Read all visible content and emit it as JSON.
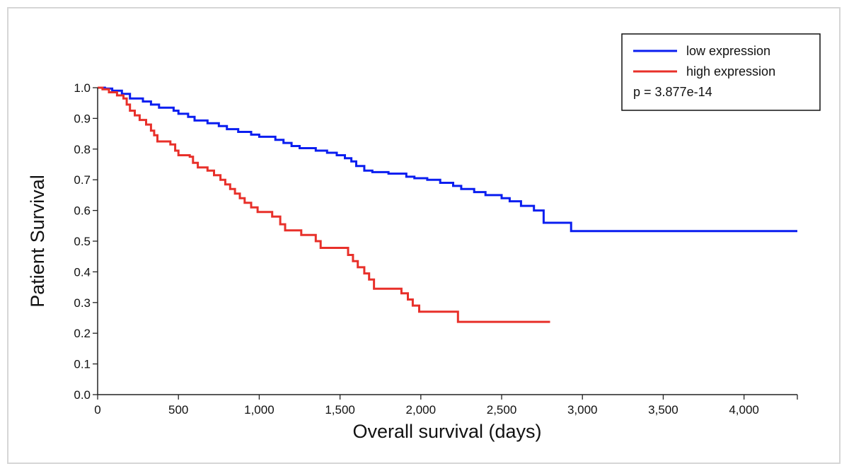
{
  "chart_data": {
    "type": "line",
    "subtype": "kaplan-meier-step",
    "xlabel": "Overall survival (days)",
    "ylabel": "Patient Survival",
    "xlim": [
      0,
      4330
    ],
    "ylim": [
      0,
      1.0
    ],
    "x_ticks": [
      0,
      500,
      1000,
      1500,
      2000,
      2500,
      3000,
      3500,
      4000
    ],
    "x_tick_labels": [
      "0",
      "500",
      "1,000",
      "1,500",
      "2,000",
      "2,500",
      "3,000",
      "3,500",
      "4,000"
    ],
    "y_ticks": [
      0,
      0.1,
      0.2,
      0.3,
      0.4,
      0.5,
      0.6,
      0.7,
      0.8,
      0.9,
      1.0
    ],
    "y_tick_labels": [
      "0.0",
      "0.1",
      "0.2",
      "0.3",
      "0.4",
      "0.5",
      "0.6",
      "0.7",
      "0.8",
      "0.9",
      "1.0"
    ],
    "grid": false,
    "legend": {
      "position": "top-right",
      "annotation": "p = 3.877e-14"
    },
    "series": [
      {
        "name": "low expression",
        "color": "#0a1ef0",
        "points": [
          [
            0,
            1.0
          ],
          [
            45,
            0.997
          ],
          [
            90,
            0.99
          ],
          [
            150,
            0.98
          ],
          [
            200,
            0.965
          ],
          [
            280,
            0.955
          ],
          [
            330,
            0.945
          ],
          [
            380,
            0.935
          ],
          [
            470,
            0.925
          ],
          [
            500,
            0.915
          ],
          [
            560,
            0.905
          ],
          [
            600,
            0.893
          ],
          [
            680,
            0.884
          ],
          [
            750,
            0.875
          ],
          [
            800,
            0.865
          ],
          [
            870,
            0.856
          ],
          [
            950,
            0.847
          ],
          [
            1000,
            0.84
          ],
          [
            1100,
            0.83
          ],
          [
            1150,
            0.82
          ],
          [
            1200,
            0.81
          ],
          [
            1250,
            0.803
          ],
          [
            1350,
            0.795
          ],
          [
            1420,
            0.788
          ],
          [
            1480,
            0.78
          ],
          [
            1530,
            0.77
          ],
          [
            1570,
            0.76
          ],
          [
            1600,
            0.745
          ],
          [
            1650,
            0.73
          ],
          [
            1700,
            0.725
          ],
          [
            1800,
            0.72
          ],
          [
            1910,
            0.71
          ],
          [
            1960,
            0.705
          ],
          [
            2040,
            0.7
          ],
          [
            2120,
            0.69
          ],
          [
            2200,
            0.68
          ],
          [
            2250,
            0.67
          ],
          [
            2330,
            0.66
          ],
          [
            2400,
            0.65
          ],
          [
            2500,
            0.64
          ],
          [
            2550,
            0.63
          ],
          [
            2620,
            0.615
          ],
          [
            2700,
            0.6
          ],
          [
            2760,
            0.56
          ],
          [
            2930,
            0.533
          ],
          [
            4330,
            0.533
          ]
        ]
      },
      {
        "name": "high expression",
        "color": "#e8302a",
        "points": [
          [
            0,
            1.0
          ],
          [
            30,
            0.995
          ],
          [
            70,
            0.985
          ],
          [
            120,
            0.975
          ],
          [
            160,
            0.965
          ],
          [
            180,
            0.945
          ],
          [
            200,
            0.925
          ],
          [
            230,
            0.91
          ],
          [
            260,
            0.895
          ],
          [
            300,
            0.88
          ],
          [
            330,
            0.86
          ],
          [
            350,
            0.845
          ],
          [
            370,
            0.825
          ],
          [
            450,
            0.815
          ],
          [
            480,
            0.795
          ],
          [
            500,
            0.78
          ],
          [
            570,
            0.775
          ],
          [
            590,
            0.755
          ],
          [
            620,
            0.74
          ],
          [
            680,
            0.73
          ],
          [
            720,
            0.715
          ],
          [
            760,
            0.7
          ],
          [
            790,
            0.685
          ],
          [
            820,
            0.67
          ],
          [
            850,
            0.655
          ],
          [
            880,
            0.64
          ],
          [
            910,
            0.625
          ],
          [
            950,
            0.61
          ],
          [
            990,
            0.595
          ],
          [
            1080,
            0.58
          ],
          [
            1130,
            0.555
          ],
          [
            1160,
            0.535
          ],
          [
            1260,
            0.52
          ],
          [
            1350,
            0.5
          ],
          [
            1380,
            0.478
          ],
          [
            1550,
            0.455
          ],
          [
            1580,
            0.435
          ],
          [
            1610,
            0.415
          ],
          [
            1650,
            0.395
          ],
          [
            1680,
            0.375
          ],
          [
            1710,
            0.345
          ],
          [
            1880,
            0.33
          ],
          [
            1920,
            0.31
          ],
          [
            1950,
            0.29
          ],
          [
            1990,
            0.27
          ],
          [
            2230,
            0.237
          ],
          [
            2800,
            0.237
          ]
        ]
      }
    ]
  }
}
